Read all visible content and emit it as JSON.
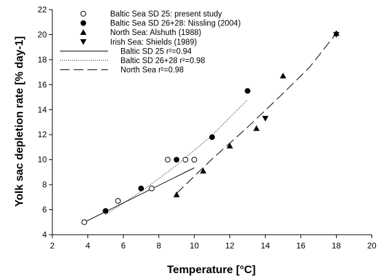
{
  "chart_data": {
    "type": "scatter",
    "title": "",
    "xlabel": "Temperature [°C]",
    "ylabel": "Yolk sac depletion rate [% day-1]",
    "xlim": [
      2,
      20
    ],
    "ylim": [
      4,
      22
    ],
    "xticks": [
      2,
      4,
      6,
      8,
      10,
      12,
      14,
      16,
      18,
      20
    ],
    "yticks": [
      4,
      6,
      8,
      10,
      12,
      14,
      16,
      18,
      20,
      22
    ],
    "grid": false,
    "legend_position": "top-left",
    "series": [
      {
        "name": "Baltic Sea SD 25: present study",
        "marker": "open-circle",
        "points": [
          [
            3.8,
            5.0
          ],
          [
            5.7,
            6.7
          ],
          [
            7.6,
            7.7
          ],
          [
            8.5,
            10.0
          ],
          [
            9.5,
            10.0
          ],
          [
            10.0,
            10.0
          ]
        ]
      },
      {
        "name": "Baltic Sea SD 26+28: Nissling (2004)",
        "marker": "filled-circle",
        "points": [
          [
            5.0,
            5.9
          ],
          [
            7.0,
            7.7
          ],
          [
            9.0,
            10.0
          ],
          [
            11.0,
            11.8
          ],
          [
            13.0,
            15.5
          ]
        ]
      },
      {
        "name": "North Sea: Alshuth (1988)",
        "marker": "triangle-up",
        "points": [
          [
            9.0,
            7.2
          ],
          [
            10.5,
            9.1
          ],
          [
            12.0,
            11.1
          ],
          [
            13.5,
            12.5
          ],
          [
            15.0,
            16.7
          ],
          [
            18.0,
            20.1
          ]
        ]
      },
      {
        "name": "Irish Sea: Shields (1989)",
        "marker": "triangle-down",
        "points": [
          [
            14.0,
            13.3
          ],
          [
            18.0,
            20.0
          ]
        ]
      }
    ],
    "fits": [
      {
        "name": "Baltic SD 25 r²=0.94",
        "style": "solid",
        "points": [
          [
            3.8,
            5.0
          ],
          [
            10.0,
            9.35
          ]
        ]
      },
      {
        "name": "Baltic SD 26+28 r²=0.98",
        "style": "dotted",
        "points": [
          [
            5.0,
            5.6
          ],
          [
            7.0,
            7.45
          ],
          [
            9.0,
            9.55
          ],
          [
            11.0,
            11.95
          ],
          [
            13.0,
            14.8
          ]
        ]
      },
      {
        "name": "North Sea r²=0.98",
        "style": "dashed",
        "points": [
          [
            9.0,
            7.3
          ],
          [
            11.0,
            10.05
          ],
          [
            13.0,
            12.6
          ],
          [
            15.0,
            15.3
          ],
          [
            16.5,
            17.4
          ],
          [
            18.0,
            20.1
          ]
        ]
      }
    ]
  }
}
